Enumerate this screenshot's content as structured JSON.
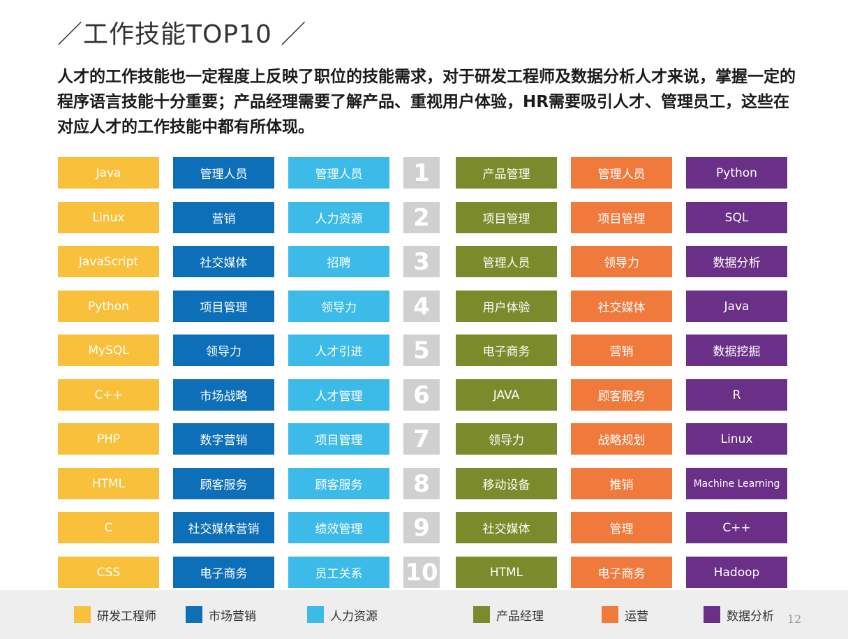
{
  "header": {
    "title": "／工作技能TOP10 ／",
    "description": "人才的工作技能也一定程度上反映了职位的技能需求，对于研发工程师及数据分析人才来说，掌握一定的程序语言技能十分重要；产品经理需要了解产品、重视用户体验，HR需要吸引人才、管理员工，这些在对应人才的工作技能中都有所体现。"
  },
  "ranks": [
    "1",
    "2",
    "3",
    "4",
    "5",
    "6",
    "7",
    "8",
    "9",
    "10"
  ],
  "columns": [
    {
      "category": "研发工程师",
      "color": "#f9c03b",
      "items": [
        "Java",
        "Linux",
        "JavaScript",
        "Python",
        "MySQL",
        "C++",
        "PHP",
        "HTML",
        "C",
        "CSS"
      ]
    },
    {
      "category": "市场营销",
      "color": "#0d6fb8",
      "items": [
        "管理人员",
        "营销",
        "社交媒体",
        "项目管理",
        "领导力",
        "市场战略",
        "数字营销",
        "顾客服务",
        "社交媒体营销",
        "电子商务"
      ]
    },
    {
      "category": "人力资源",
      "color": "#3dbbe8",
      "items": [
        "管理人员",
        "人力资源",
        "招聘",
        "领导力",
        "人才引进",
        "人才管理",
        "项目管理",
        "顾客服务",
        "绩效管理",
        "员工关系"
      ]
    },
    {
      "category": "产品经理",
      "color": "#7b8a2a",
      "items": [
        "产品管理",
        "项目管理",
        "管理人员",
        "用户体验",
        "电子商务",
        "JAVA",
        "领导力",
        "移动设备",
        "社交媒体",
        "HTML"
      ]
    },
    {
      "category": "运营",
      "color": "#ef7a3c",
      "items": [
        "管理人员",
        "项目管理",
        "领导力",
        "社交媒体",
        "营销",
        "顾客服务",
        "战略规划",
        "推销",
        "管理",
        "电子商务"
      ]
    },
    {
      "category": "数据分析",
      "color": "#6a2f87",
      "items": [
        "Python",
        "SQL",
        "数据分析",
        "Java",
        "数据挖掘",
        "R",
        "Linux",
        "Machine Learning",
        "C++",
        "Hadoop"
      ]
    }
  ],
  "footer": {
    "page_number": "12"
  }
}
